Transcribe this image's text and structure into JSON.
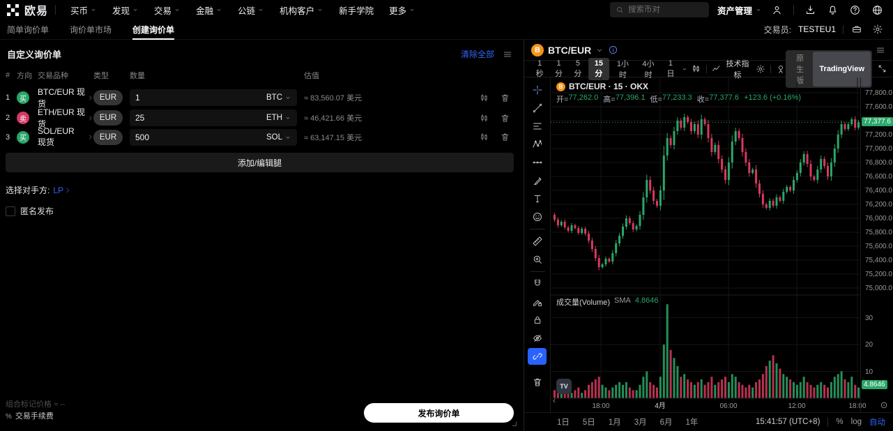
{
  "topnav": {
    "brand": "欧易",
    "menu": [
      {
        "label": "买币",
        "caret": true
      },
      {
        "label": "发现",
        "caret": true
      },
      {
        "label": "交易",
        "caret": true
      },
      {
        "label": "金融",
        "caret": true
      },
      {
        "label": "公链",
        "caret": true
      },
      {
        "label": "机构客户",
        "caret": true
      },
      {
        "label": "新手学院",
        "caret": false
      },
      {
        "label": "更多",
        "caret": true
      }
    ],
    "search_placeholder": "搜索币对",
    "assets_label": "资产管理",
    "icons": [
      "user-icon",
      "download-icon",
      "bell-icon",
      "help-icon",
      "globe-icon"
    ]
  },
  "subnav": {
    "tabs": [
      {
        "label": "简单询价单",
        "active": false
      },
      {
        "label": "询价单市场",
        "active": false
      },
      {
        "label": "创建询价单",
        "active": true
      }
    ],
    "trader_label": "交易员:",
    "trader_value": "TESTEU1",
    "icons": [
      "briefcase-icon",
      "gear-icon"
    ]
  },
  "panel": {
    "title": "自定义询价单",
    "clear_all": "清除全部",
    "columns": [
      "#",
      "方向",
      "交易品种",
      "类型",
      "数量",
      "估值"
    ],
    "rows": [
      {
        "index": "1",
        "side": "买",
        "side_type": "buy",
        "pair": "BTC/EUR",
        "market": "现货",
        "currency": "EUR",
        "amount": "1",
        "unit": "BTC",
        "value": "≈ 83,560.07 美元"
      },
      {
        "index": "2",
        "side": "卖",
        "side_type": "sell",
        "pair": "ETH/EUR",
        "market": "现货",
        "currency": "EUR",
        "amount": "25",
        "unit": "ETH",
        "value": "≈ 46,421.66 美元"
      },
      {
        "index": "3",
        "side": "买",
        "side_type": "buy",
        "pair": "SOL/EUR",
        "market": "现货",
        "currency": "EUR",
        "amount": "500",
        "unit": "SOL",
        "value": "≈ 63,147.15 美元"
      }
    ],
    "add_leg": "添加/编辑腿",
    "counterparty_label": "选择对手方:",
    "counterparty_value": "LP",
    "anonymous_label": "匿名发布",
    "mark_price_label": "组合标记价格",
    "mark_price_value": "≈ --",
    "fee_percent": "%",
    "fee_label": "交易手续费",
    "publish": "发布询价单"
  },
  "chart": {
    "symbol": "BTC/EUR",
    "timeframes": [
      "1秒",
      "1分",
      "5分",
      "15分",
      "1小时",
      "4小时",
      "1日"
    ],
    "active_timeframe": "15分",
    "indicators_label": "技术指标",
    "native_label": "原生版",
    "tv_label": "TradingView",
    "tv_mark": "TV",
    "legend_title": "BTC/EUR · 15 · OKX",
    "ohlc": {
      "open_label": "开=",
      "open": "77,262.0",
      "high_label": "高=",
      "high": "77,396.1",
      "low_label": "低=",
      "low": "77,233.3",
      "close_label": "收=",
      "close": "77,377.6",
      "change": "+123.6 (+0.16%)"
    },
    "price_badge": "77,377.6",
    "volume_title": "成交量(Volume)",
    "volume_sma_label": "SMA",
    "volume_sma_value": "4.8646",
    "volume_badge": "4.8646",
    "scroll_left_glyph": "‹",
    "ranges": [
      "1日",
      "5日",
      "1月",
      "3月",
      "6月",
      "1年"
    ],
    "clock": "15:41:57 (UTC+8)",
    "percent_label": "%",
    "log_label": "log",
    "auto_label": "自动",
    "draw_tool_groups": [
      [
        "crosshair-icon",
        "trendline-icon",
        "fib-icon",
        "pattern-icon",
        "forecast-icon",
        "brush-icon",
        "text-icon",
        "emoji-icon"
      ],
      [
        "ruler-icon",
        "zoom-in-icon"
      ],
      [
        "magnet-icon",
        "draw-lock-icon",
        "lock-icon",
        "hide-icon",
        "link-icon"
      ],
      [
        "trash-icon"
      ]
    ],
    "active_tool": "link-icon",
    "colors": {
      "up": "#2aa868",
      "down": "#d8395f",
      "accent_blue": "#3265f6",
      "tool_active": "#2962ff",
      "grid": "#141414",
      "separator": "#1e1e1e"
    }
  },
  "chart_data": {
    "type": "candlestick",
    "symbol": "BTC/EUR",
    "interval": "15",
    "exchange": "OKX",
    "current_price": 77377.6,
    "ohlc_last": {
      "open": 77262.0,
      "high": 77396.1,
      "low": 77233.3,
      "close": 77377.6,
      "change": 123.6,
      "change_pct": 0.16
    },
    "y_ticks": [
      77800,
      77600,
      77400,
      77200,
      77000,
      76800,
      76600,
      76400,
      76200,
      76000,
      75800,
      75600,
      75400,
      75200,
      75000
    ],
    "volume_ticks": [
      10,
      20,
      30
    ],
    "volume_sma": 4.8646,
    "x_ticks": [
      {
        "label": "18:00",
        "x": 72,
        "emph": false
      },
      {
        "label": "4月",
        "x": 157,
        "emph": true
      },
      {
        "label": "06:00",
        "x": 255,
        "emph": false
      },
      {
        "label": "12:00",
        "x": 353,
        "emph": false
      },
      {
        "label": "18:00",
        "x": 440,
        "emph": false
      }
    ],
    "first_open": 76050,
    "closes": [
      75980,
      75900,
      75950,
      75870,
      75820,
      75900,
      75860,
      75790,
      75850,
      75780,
      75680,
      75560,
      75430,
      75300,
      75340,
      75420,
      75380,
      75500,
      75640,
      75750,
      75880,
      76000,
      75930,
      75840,
      75890,
      76050,
      76300,
      76550,
      76400,
      76250,
      76180,
      76400,
      76900,
      77150,
      77050,
      77250,
      77400,
      77300,
      77450,
      77380,
      77250,
      77350,
      77200,
      77420,
      77350,
      77150,
      76950,
      77050,
      76850,
      76700,
      76550,
      76800,
      77100,
      77250,
      77150,
      76950,
      76800,
      76650,
      76700,
      76500,
      76350,
      76200,
      76150,
      76250,
      76180,
      76300,
      76250,
      76380,
      76450,
      76400,
      76550,
      76650,
      76800,
      76920,
      76780,
      76600,
      76550,
      76700,
      76850,
      76750,
      76600,
      76800,
      77000,
      77200,
      77350,
      77280,
      77350,
      77420,
      77300,
      77377.6
    ],
    "volumes": [
      3,
      2,
      4,
      2,
      3,
      2,
      3,
      4,
      2,
      3,
      5,
      6,
      7,
      8,
      5,
      4,
      3,
      4,
      5,
      6,
      5,
      6,
      4,
      3,
      3,
      5,
      8,
      10,
      6,
      5,
      4,
      8,
      20,
      35,
      18,
      15,
      12,
      8,
      9,
      7,
      6,
      5,
      6,
      7,
      5,
      6,
      8,
      5,
      6,
      7,
      8,
      6,
      9,
      8,
      6,
      5,
      4,
      5,
      4,
      6,
      7,
      9,
      12,
      14,
      16,
      13,
      11,
      9,
      8,
      7,
      6,
      5,
      6,
      8,
      6,
      5,
      4,
      5,
      6,
      5,
      4,
      6,
      8,
      9,
      10,
      7,
      6,
      8,
      5,
      4
    ]
  }
}
